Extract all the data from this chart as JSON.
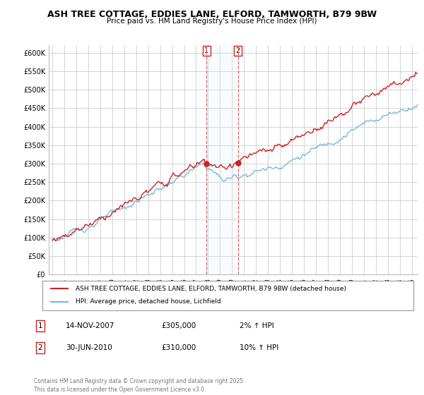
{
  "title": "ASH TREE COTTAGE, EDDIES LANE, ELFORD, TAMWORTH, B79 9BW",
  "subtitle": "Price paid vs. HM Land Registry's House Price Index (HPI)",
  "legend_line1": "ASH TREE COTTAGE, EDDIES LANE, ELFORD, TAMWORTH, B79 9BW (detached house)",
  "legend_line2": "HPI: Average price, detached house, Lichfield",
  "sale1_label": "1",
  "sale1_date": "14-NOV-2007",
  "sale1_price": "£305,000",
  "sale1_hpi": "2% ↑ HPI",
  "sale1_year": 2007.87,
  "sale1_value": 305000,
  "sale2_label": "2",
  "sale2_date": "30-JUN-2010",
  "sale2_price": "£310,000",
  "sale2_hpi": "10% ↑ HPI",
  "sale2_year": 2010.5,
  "sale2_value": 310000,
  "footnote": "Contains HM Land Registry data © Crown copyright and database right 2025.\nThis data is licensed under the Open Government Licence v3.0.",
  "hpi_color": "#7ab8d9",
  "property_color": "#cc2222",
  "sale_marker_color": "#cc2222",
  "vline_color": "#dd6666",
  "span_color": "#ddeeff",
  "background_color": "#ffffff",
  "plot_bg_color": "#ffffff",
  "grid_color": "#cccccc",
  "ylim": [
    0,
    620000
  ],
  "yticks": [
    0,
    50000,
    100000,
    150000,
    200000,
    250000,
    300000,
    350000,
    400000,
    450000,
    500000,
    550000,
    600000
  ],
  "xlim_start": 1994.7,
  "xlim_end": 2025.5,
  "xticks": [
    1995,
    1996,
    1997,
    1998,
    1999,
    2000,
    2001,
    2002,
    2003,
    2004,
    2005,
    2006,
    2007,
    2008,
    2009,
    2010,
    2011,
    2012,
    2013,
    2014,
    2015,
    2016,
    2017,
    2018,
    2019,
    2020,
    2021,
    2022,
    2023,
    2024,
    2025
  ]
}
